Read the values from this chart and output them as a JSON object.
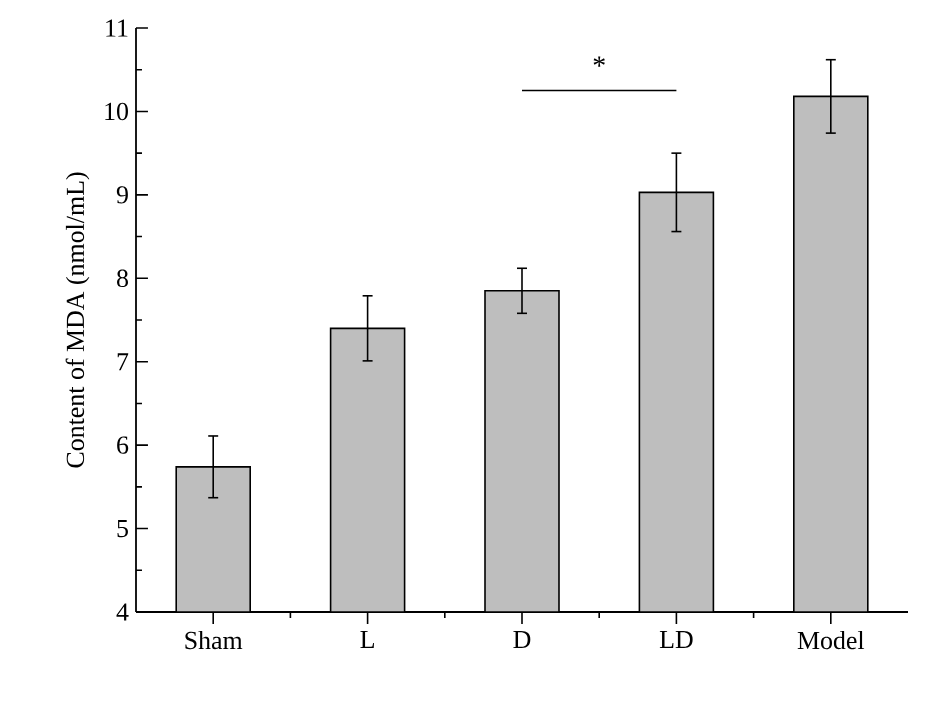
{
  "chart_data": {
    "type": "bar",
    "ylabel": "Content of MDA (nmol/mL)",
    "categories": [
      "Sham",
      "L",
      "D",
      "LD",
      "Model"
    ],
    "values": [
      5.74,
      7.4,
      7.85,
      9.03,
      10.18
    ],
    "errors": [
      0.37,
      0.39,
      0.27,
      0.47,
      0.44
    ],
    "color": "#bebebe",
    "ylim": [
      4,
      11
    ],
    "yticks": [
      4,
      5,
      6,
      7,
      8,
      9,
      10,
      11
    ],
    "annotations": [
      "*"
    ]
  }
}
